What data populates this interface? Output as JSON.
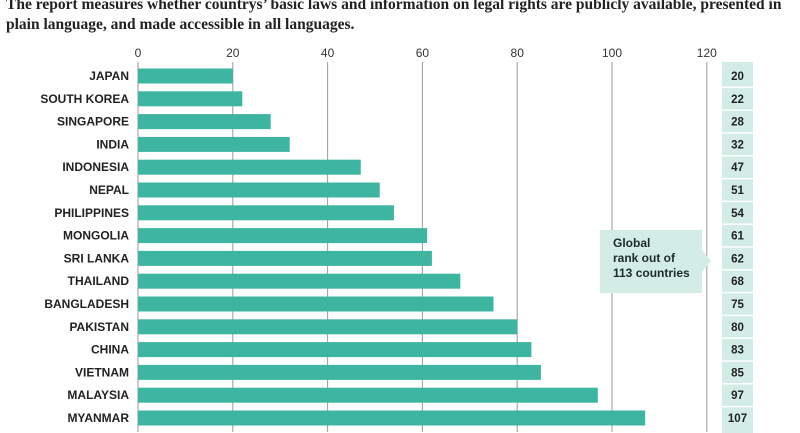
{
  "subtitle": "The report measures whether countrys’ basic laws and information on legal rights are publicly available, presented in plain language, and made accessible in all languages.",
  "callout": {
    "line1": "Global",
    "line2": "rank out of",
    "line3": "113 countries"
  },
  "colors": {
    "bar": "#3db5a0",
    "rank_bg": "#d3ece6",
    "grid": "#9a9a9a"
  },
  "chart_data": {
    "type": "bar",
    "orientation": "horizontal",
    "title": "",
    "xlabel": "",
    "ylabel": "",
    "xlim": [
      0,
      120
    ],
    "ticks": [
      0,
      20,
      40,
      60,
      80,
      100,
      120
    ],
    "grid": true,
    "categories": [
      "JAPAN",
      "SOUTH KOREA",
      "SINGAPORE",
      "INDIA",
      "INDONESIA",
      "NEPAL",
      "PHILIPPINES",
      "MONGOLIA",
      "SRI LANKA",
      "THAILAND",
      "BANGLADESH",
      "PAKISTAN",
      "CHINA",
      "VIETNAM",
      "MALAYSIA",
      "MYANMAR"
    ],
    "values": [
      20,
      22,
      28,
      32,
      47,
      51,
      54,
      61,
      62,
      68,
      75,
      80,
      83,
      85,
      97,
      107
    ]
  }
}
